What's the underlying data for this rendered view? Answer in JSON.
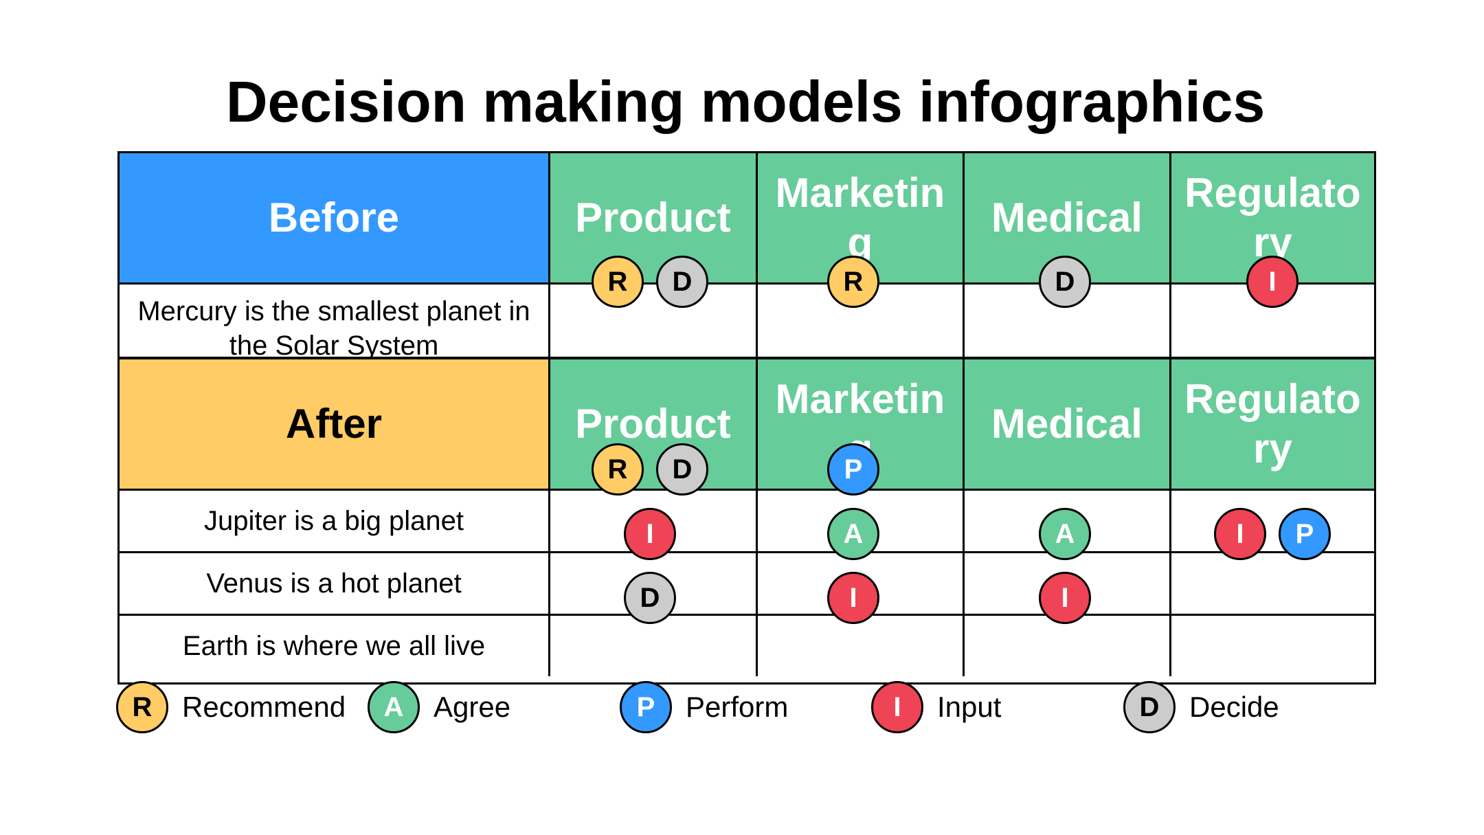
{
  "title": "Decision making models infographics",
  "colors": {
    "before_header": "#3399ff",
    "after_header": "#ffcc66",
    "department_header": "#66cc99",
    "recommend": "#ffcc66",
    "agree": "#66cc99",
    "perform": "#3399ff",
    "input": "#ee4455",
    "decide": "#cccccc"
  },
  "departments": [
    "Product",
    "Marketing",
    "Medical",
    "Regulatory"
  ],
  "before": {
    "label": "Before",
    "rows": [
      {
        "text": "Mercury is the smallest planet in the Solar System"
      }
    ]
  },
  "after": {
    "label": "After",
    "rows": [
      {
        "text": "Jupiter is a big planet"
      },
      {
        "text": "Venus is a hot planet"
      },
      {
        "text": "Earth is where we all live"
      }
    ]
  },
  "legend": [
    {
      "letter": "R",
      "label": "Recommend",
      "type": "recommend"
    },
    {
      "letter": "A",
      "label": "Agree",
      "type": "agree"
    },
    {
      "letter": "P",
      "label": "Perform",
      "type": "perform"
    },
    {
      "letter": "I",
      "label": "Input",
      "type": "input"
    },
    {
      "letter": "D",
      "label": "Decide",
      "type": "decide"
    }
  ],
  "badges": [
    {
      "section": "before",
      "row": "header",
      "department": "Product",
      "letter": "R",
      "type": "recommend"
    },
    {
      "section": "before",
      "row": "header",
      "department": "Product",
      "letter": "D",
      "type": "decide"
    },
    {
      "section": "before",
      "row": "header",
      "department": "Marketing",
      "letter": "R",
      "type": "recommend"
    },
    {
      "section": "before",
      "row": "header",
      "department": "Medical",
      "letter": "D",
      "type": "decide"
    },
    {
      "section": "before",
      "row": "header",
      "department": "Regulatory",
      "letter": "I",
      "type": "input"
    },
    {
      "section": "after",
      "row": "header",
      "department": "Product",
      "letter": "R",
      "type": "recommend"
    },
    {
      "section": "after",
      "row": "header",
      "department": "Product",
      "letter": "D",
      "type": "decide"
    },
    {
      "section": "after",
      "row": "header",
      "department": "Marketing",
      "letter": "P",
      "type": "perform"
    },
    {
      "section": "after",
      "row": "Jupiter is a big planet",
      "department": "Product",
      "letter": "I",
      "type": "input"
    },
    {
      "section": "after",
      "row": "Jupiter is a big planet",
      "department": "Marketing",
      "letter": "A",
      "type": "agree"
    },
    {
      "section": "after",
      "row": "Jupiter is a big planet",
      "department": "Medical",
      "letter": "A",
      "type": "agree"
    },
    {
      "section": "after",
      "row": "Jupiter is a big planet",
      "department": "Regulatory",
      "letter": "I",
      "type": "input"
    },
    {
      "section": "after",
      "row": "Jupiter is a big planet",
      "department": "Regulatory",
      "letter": "P",
      "type": "perform"
    },
    {
      "section": "after",
      "row": "Venus is a hot planet",
      "department": "Product",
      "letter": "D",
      "type": "decide"
    },
    {
      "section": "after",
      "row": "Venus is a hot planet",
      "department": "Marketing",
      "letter": "I",
      "type": "input"
    },
    {
      "section": "after",
      "row": "Venus is a hot planet",
      "department": "Medical",
      "letter": "I",
      "type": "input"
    }
  ]
}
